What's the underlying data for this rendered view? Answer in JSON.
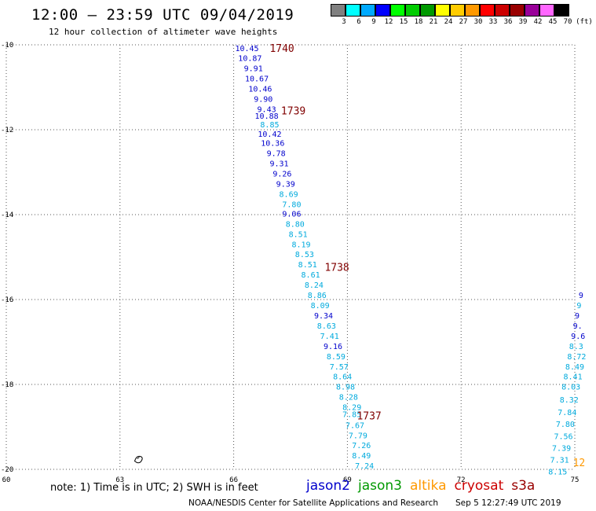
{
  "header": {
    "title": "12:00 – 23:59 UTC 09/04/2019",
    "subtitle": "12 hour collection of altimeter wave heights"
  },
  "colorbar": {
    "colors": [
      "#808080",
      "#00ffff",
      "#00aaff",
      "#0000ff",
      "#00ff00",
      "#00cc00",
      "#009900",
      "#ffff00",
      "#ffcc00",
      "#ff9900",
      "#ff0000",
      "#cc0000",
      "#990000",
      "#990099",
      "#ff66ff",
      "#000000"
    ],
    "labels": [
      "3",
      "6",
      "9",
      "12",
      "15",
      "18",
      "21",
      "24",
      "27",
      "30",
      "33",
      "36",
      "39",
      "42",
      "45",
      "70"
    ],
    "unit": "(ft)"
  },
  "map": {
    "lon_ticks": [
      "60",
      "63",
      "66",
      "69",
      "72",
      "75"
    ],
    "lat_ticks": [
      "-10",
      "-12",
      "-14",
      "-16",
      "-18",
      "-20"
    ],
    "island_glyph": "coastline-icon"
  },
  "chart_data": {
    "type": "scatter",
    "xlabel": "",
    "ylabel": "",
    "xlim": [
      60,
      75
    ],
    "ylim": [
      -20,
      -10
    ],
    "track_main": [
      {
        "lon": 66.35,
        "lat": -10.07,
        "v": "10.45",
        "c": "#0000cc"
      },
      {
        "lon": 66.43,
        "lat": -10.31,
        "v": "10.87",
        "c": "#0000cc"
      },
      {
        "lon": 66.52,
        "lat": -10.55,
        "v": "9.91",
        "c": "#0000cc"
      },
      {
        "lon": 66.61,
        "lat": -10.79,
        "v": "10.67",
        "c": "#0000cc"
      },
      {
        "lon": 66.7,
        "lat": -11.03,
        "v": "10.46",
        "c": "#0000cc"
      },
      {
        "lon": 66.78,
        "lat": -11.27,
        "v": "9.90",
        "c": "#0000cc"
      },
      {
        "lon": 66.87,
        "lat": -11.51,
        "v": "9.43",
        "c": "#0000cc"
      },
      {
        "lon": 66.87,
        "lat": -11.67,
        "v": "10.88",
        "c": "#0000cc"
      },
      {
        "lon": 66.95,
        "lat": -11.87,
        "v": "8.85",
        "c": "#00aadd"
      },
      {
        "lon": 66.95,
        "lat": -12.09,
        "v": "10.42",
        "c": "#0000cc"
      },
      {
        "lon": 67.03,
        "lat": -12.31,
        "v": "10.36",
        "c": "#0000cc"
      },
      {
        "lon": 67.12,
        "lat": -12.55,
        "v": "9.78",
        "c": "#0000cc"
      },
      {
        "lon": 67.2,
        "lat": -12.79,
        "v": "9.31",
        "c": "#0000cc"
      },
      {
        "lon": 67.28,
        "lat": -13.03,
        "v": "9.26",
        "c": "#0000cc"
      },
      {
        "lon": 67.37,
        "lat": -13.27,
        "v": "9.39",
        "c": "#0000cc"
      },
      {
        "lon": 67.45,
        "lat": -13.51,
        "v": "8.69",
        "c": "#00aadd"
      },
      {
        "lon": 67.53,
        "lat": -13.75,
        "v": "7.80",
        "c": "#00aadd"
      },
      {
        "lon": 67.53,
        "lat": -13.97,
        "v": "9.06",
        "c": "#0000cc"
      },
      {
        "lon": 67.62,
        "lat": -14.21,
        "v": "8.80",
        "c": "#00aadd"
      },
      {
        "lon": 67.7,
        "lat": -14.45,
        "v": "8.51",
        "c": "#00aadd"
      },
      {
        "lon": 67.78,
        "lat": -14.69,
        "v": "8.19",
        "c": "#00aadd"
      },
      {
        "lon": 67.87,
        "lat": -14.93,
        "v": "8.53",
        "c": "#00aadd"
      },
      {
        "lon": 67.95,
        "lat": -15.17,
        "v": "8.51",
        "c": "#00aadd"
      },
      {
        "lon": 68.03,
        "lat": -15.41,
        "v": "8.61",
        "c": "#00aadd"
      },
      {
        "lon": 68.12,
        "lat": -15.65,
        "v": "8.24",
        "c": "#00aadd"
      },
      {
        "lon": 68.2,
        "lat": -15.89,
        "v": "8.86",
        "c": "#00aadd"
      },
      {
        "lon": 68.28,
        "lat": -16.13,
        "v": "8.09",
        "c": "#00aadd"
      },
      {
        "lon": 68.37,
        "lat": -16.37,
        "v": "9.34",
        "c": "#0000cc"
      },
      {
        "lon": 68.45,
        "lat": -16.61,
        "v": "8.63",
        "c": "#00aadd"
      },
      {
        "lon": 68.53,
        "lat": -16.85,
        "v": "7.41",
        "c": "#00aadd"
      },
      {
        "lon": 68.62,
        "lat": -17.09,
        "v": "9.16",
        "c": "#0000cc"
      },
      {
        "lon": 68.7,
        "lat": -17.33,
        "v": "8.59",
        "c": "#00aadd"
      },
      {
        "lon": 68.78,
        "lat": -17.57,
        "v": "7.57",
        "c": "#00aadd"
      },
      {
        "lon": 68.87,
        "lat": -17.81,
        "v": "8.64",
        "c": "#00aadd"
      },
      {
        "lon": 68.95,
        "lat": -18.05,
        "v": "8.98",
        "c": "#00aadd"
      },
      {
        "lon": 69.03,
        "lat": -18.29,
        "v": "8.28",
        "c": "#00aadd"
      },
      {
        "lon": 69.12,
        "lat": -18.53,
        "v": "8.29",
        "c": "#00aadd"
      },
      {
        "lon": 69.12,
        "lat": -18.69,
        "v": "7.85",
        "c": "#00aadd"
      },
      {
        "lon": 69.2,
        "lat": -18.95,
        "v": "7.67",
        "c": "#00aadd"
      },
      {
        "lon": 69.28,
        "lat": -19.19,
        "v": "7.79",
        "c": "#00aadd"
      },
      {
        "lon": 69.37,
        "lat": -19.43,
        "v": "7.26",
        "c": "#00aadd"
      },
      {
        "lon": 69.37,
        "lat": -19.67,
        "v": "8.49",
        "c": "#00aadd"
      },
      {
        "lon": 69.45,
        "lat": -19.91,
        "v": "7.24",
        "c": "#00aadd"
      }
    ],
    "track_east": [
      {
        "lon": 75.1,
        "lat": -15.89,
        "v": "9",
        "c": "#0000cc"
      },
      {
        "lon": 75.05,
        "lat": -16.13,
        "v": "9",
        "c": "#00aadd"
      },
      {
        "lon": 75.0,
        "lat": -16.37,
        "v": "9",
        "c": "#0000cc"
      },
      {
        "lon": 74.95,
        "lat": -16.61,
        "v": "9.",
        "c": "#0000cc"
      },
      {
        "lon": 74.9,
        "lat": -16.85,
        "v": "9.6",
        "c": "#0000cc"
      },
      {
        "lon": 74.85,
        "lat": -17.09,
        "v": "8.3",
        "c": "#00aadd"
      },
      {
        "lon": 74.8,
        "lat": -17.33,
        "v": "8.72",
        "c": "#00aadd"
      },
      {
        "lon": 74.75,
        "lat": -17.57,
        "v": "8.49",
        "c": "#00aadd"
      },
      {
        "lon": 74.7,
        "lat": -17.81,
        "v": "8.41",
        "c": "#00aadd"
      },
      {
        "lon": 74.65,
        "lat": -18.05,
        "v": "8.03",
        "c": "#00aadd"
      },
      {
        "lon": 74.6,
        "lat": -18.35,
        "v": "8.32",
        "c": "#00aadd"
      },
      {
        "lon": 74.55,
        "lat": -18.65,
        "v": "7.84",
        "c": "#00aadd"
      },
      {
        "lon": 74.5,
        "lat": -18.93,
        "v": "7.80",
        "c": "#00aadd"
      },
      {
        "lon": 74.45,
        "lat": -19.21,
        "v": "7.56",
        "c": "#00aadd"
      },
      {
        "lon": 74.4,
        "lat": -19.49,
        "v": "7.39",
        "c": "#00aadd"
      },
      {
        "lon": 74.35,
        "lat": -19.77,
        "v": "7.31",
        "c": "#00aadd"
      },
      {
        "lon": 74.3,
        "lat": -20.05,
        "v": "8.15",
        "c": "#00aadd"
      }
    ],
    "time_labels": [
      {
        "lon": 66.95,
        "lat": -10.07,
        "t": "1740"
      },
      {
        "lon": 67.25,
        "lat": -11.55,
        "t": "1739"
      },
      {
        "lon": 68.4,
        "lat": -15.23,
        "t": "1738"
      },
      {
        "lon": 69.25,
        "lat": -18.73,
        "t": "1737"
      }
    ],
    "edge_time_label": {
      "lon": 74.95,
      "lat": -19.83,
      "t": "12"
    }
  },
  "footer": {
    "note": "note: 1) Time is in UTC; 2) SWH is in feet",
    "satellites": [
      {
        "name": "jason2",
        "color": "#0000cc"
      },
      {
        "name": "jason3",
        "color": "#009900"
      },
      {
        "name": "altika",
        "color": "#ff9900"
      },
      {
        "name": "cryosat",
        "color": "#cc0000"
      },
      {
        "name": "s3a",
        "color": "#990000"
      }
    ],
    "agency": "NOAA/NESDIS Center for Satellite Applications and Research",
    "generated": "Sep  5 12:27:49 UTC 2019"
  }
}
